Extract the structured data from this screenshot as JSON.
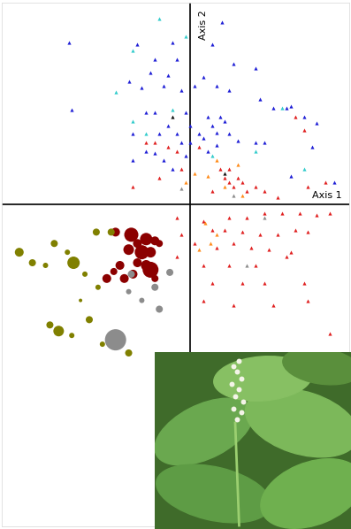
{
  "chart_data": {
    "type": "scatter",
    "xlabel": "Axis 1",
    "ylabel": "Axis 2",
    "xlim": [
      -215,
      182
    ],
    "ylim": [
      -368,
      230
    ],
    "xticks": [],
    "yticks": [],
    "tick_labels": false,
    "grid": false,
    "series": [
      {
        "color": "#1f1fd6",
        "marker": "triangle",
        "x": [
          -138,
          -60,
          -20,
          37,
          25,
          -40,
          -15,
          50,
          75,
          -45,
          -25,
          15,
          -70,
          -55,
          -30,
          -10,
          5,
          30,
          45,
          80,
          95,
          110,
          115,
          130,
          -135,
          -50,
          -40,
          -5,
          20,
          35,
          -25,
          0,
          -65,
          25,
          40,
          -35,
          -15,
          10,
          30,
          15,
          -10,
          0,
          45,
          55,
          75,
          85,
          -50,
          -40,
          -30,
          -65,
          -20,
          -5,
          140,
          165,
          115,
          30,
          145,
          20
        ],
        "y": [
          185,
          183,
          185,
          208,
          183,
          165,
          165,
          160,
          155,
          150,
          147,
          145,
          140,
          133,
          135,
          130,
          135,
          135,
          130,
          120,
          110,
          110,
          112,
          100,
          108,
          105,
          105,
          105,
          100,
          100,
          90,
          90,
          80,
          90,
          95,
          80,
          80,
          80,
          82,
          75,
          70,
          70,
          80,
          72,
          70,
          70,
          60,
          58,
          50,
          50,
          40,
          55,
          65,
          25,
          32,
          67,
          93,
          60
        ]
      },
      {
        "color": "#33cccc",
        "marker": "triangle",
        "x": [
          -35,
          -5,
          -65,
          -85,
          -65,
          -50,
          -20,
          105,
          25,
          130,
          75
        ],
        "y": [
          212,
          192,
          175,
          128,
          95,
          80,
          108,
          110,
          55,
          40,
          60
        ]
      },
      {
        "color": "#111111",
        "marker": "triangle",
        "x": [
          -20,
          40
        ],
        "y": [
          100,
          35
        ]
      },
      {
        "color": "#e02020",
        "marker": "triangle",
        "x": [
          -50,
          -40,
          -25,
          -15,
          10,
          35,
          40,
          45,
          50,
          55,
          60,
          65,
          75,
          85,
          100,
          130,
          135,
          155,
          -65,
          -35,
          -10,
          25,
          120,
          45,
          -15,
          15,
          45,
          65,
          85,
          105,
          125,
          145,
          160,
          25,
          40,
          60,
          80,
          100,
          120,
          135,
          5,
          30,
          50,
          70,
          90,
          115,
          -15,
          15,
          45,
          75,
          110,
          25,
          60,
          85,
          130,
          15,
          50,
          95,
          135,
          160,
          -10
        ],
        "y": [
          70,
          70,
          65,
          60,
          65,
          40,
          30,
          25,
          20,
          30,
          25,
          15,
          20,
          15,
          8,
          85,
          20,
          25,
          20,
          30,
          40,
          15,
          100,
          40,
          -15,
          -20,
          -15,
          -15,
          -10,
          -10,
          -10,
          -12,
          -10,
          -30,
          -30,
          -32,
          -35,
          -35,
          -30,
          -32,
          -45,
          -50,
          -45,
          -50,
          -52,
          -55,
          -60,
          -70,
          -70,
          -70,
          -60,
          -90,
          -90,
          -90,
          -90,
          -110,
          -115,
          -115,
          -110,
          -148,
          -35
        ]
      },
      {
        "color": "#ff8c1a",
        "marker": "triangle",
        "x": [
          5,
          20,
          30,
          55,
          60,
          40,
          17,
          30,
          23,
          10,
          -5
        ],
        "y": [
          35,
          32,
          50,
          45,
          10,
          20,
          -22,
          -35,
          -45,
          -52,
          25
        ]
      },
      {
        "color": "#8c8c8c",
        "marker": "triangle",
        "x": [
          -10,
          50,
          65,
          85
        ],
        "y": [
          18,
          10,
          -70,
          -15
        ]
      },
      {
        "color": "#8b0000",
        "marker": "circle",
        "x": [
          -85,
          -67,
          -60,
          -50,
          -40,
          -70,
          -55,
          -45,
          -60,
          -50,
          -45,
          -65,
          -80,
          -95,
          -75,
          -87,
          -35,
          -40
        ],
        "y": [
          -32,
          -35,
          -45,
          -40,
          -42,
          -52,
          -55,
          -55,
          -67,
          -70,
          -75,
          -80,
          -70,
          -85,
          -85,
          -77,
          -45,
          -85
        ],
        "sizes": [
          5,
          8,
          5,
          7,
          5,
          6,
          8,
          6,
          5,
          6,
          9,
          5,
          5,
          5,
          5,
          4,
          4,
          4
        ]
      },
      {
        "color": "#808000",
        "marker": "circle",
        "x": [
          -195,
          -180,
          -133,
          -107,
          -90,
          -155,
          -120,
          -115,
          -150,
          -160,
          -135,
          -140,
          -165,
          -70,
          -100,
          -105,
          -125
        ],
        "y": [
          -55,
          -67,
          -67,
          -32,
          -32,
          -45,
          -80,
          -132,
          -145,
          -138,
          -150,
          -55,
          -70,
          -170,
          -160,
          -95,
          -110
        ],
        "sizes": [
          5,
          4,
          7,
          4,
          4,
          4,
          3,
          4,
          6,
          4,
          3,
          3,
          3,
          4,
          3,
          3,
          2
        ]
      },
      {
        "color": "#8c8c8c",
        "marker": "circle",
        "x": [
          -85,
          -67,
          -40,
          -35,
          -23,
          -55,
          -70
        ],
        "y": [
          -155,
          -80,
          -95,
          -120,
          -78,
          -110,
          -100
        ],
        "sizes": [
          12,
          4,
          4,
          4,
          4,
          3,
          3
        ]
      }
    ]
  }
}
